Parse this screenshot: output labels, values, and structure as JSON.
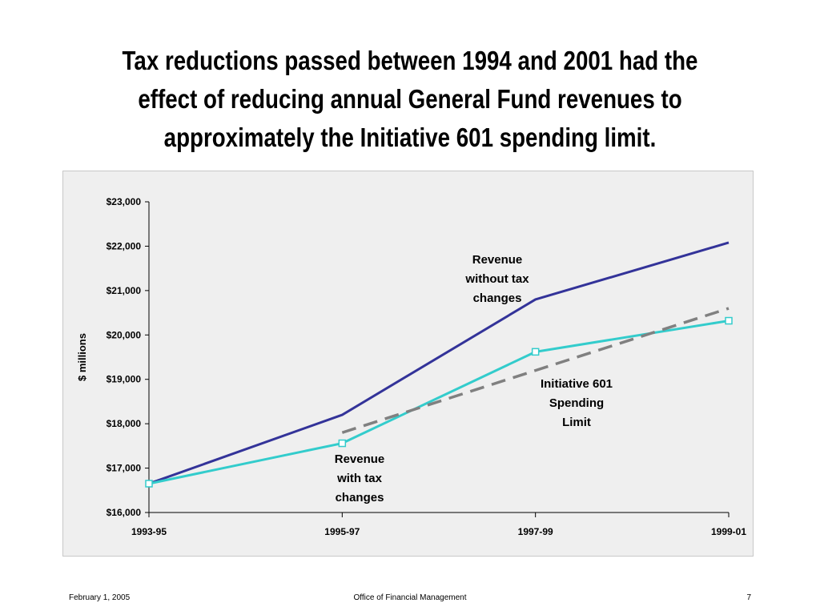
{
  "slide": {
    "title_lines": [
      "Tax reductions passed between 1994 and 2001 had the",
      "effect of reducing annual General Fund revenues to",
      "approximately the Initiative 601 spending limit."
    ]
  },
  "footer": {
    "date": "February 1, 2005",
    "organization": "Office of Financial Management",
    "page_number": "7"
  },
  "chart_data": {
    "type": "line",
    "title": "",
    "xlabel": "",
    "ylabel": "$ millions",
    "categories": [
      "1993-95",
      "1995-97",
      "1997-99",
      "1999-01"
    ],
    "ylim": [
      16000,
      23000
    ],
    "yticks": [
      16000,
      17000,
      18000,
      19000,
      20000,
      21000,
      22000,
      23000
    ],
    "ytick_labels": [
      "$16,000",
      "$17,000",
      "$18,000",
      "$19,000",
      "$20,000",
      "$21,000",
      "$22,000",
      "$23,000"
    ],
    "grid": false,
    "series": [
      {
        "name": "Revenue without tax changes",
        "label_lines": [
          "Revenue",
          "without tax",
          "changes"
        ],
        "values": [
          16650,
          18200,
          20800,
          22080
        ],
        "color": "#333399",
        "style": "solid",
        "markers": false
      },
      {
        "name": "Revenue with tax changes",
        "label_lines": [
          "Revenue",
          "with tax",
          "changes"
        ],
        "values": [
          16650,
          17560,
          19620,
          20320
        ],
        "color": "#33cccc",
        "style": "solid",
        "markers": true
      },
      {
        "name": "Initiative 601 Spending Limit",
        "label_lines": [
          "Initiative 601",
          "Spending",
          "Limit"
        ],
        "values": [
          null,
          17800,
          19200,
          20600
        ],
        "color": "#808080",
        "style": "dashed",
        "markers": false
      }
    ]
  }
}
